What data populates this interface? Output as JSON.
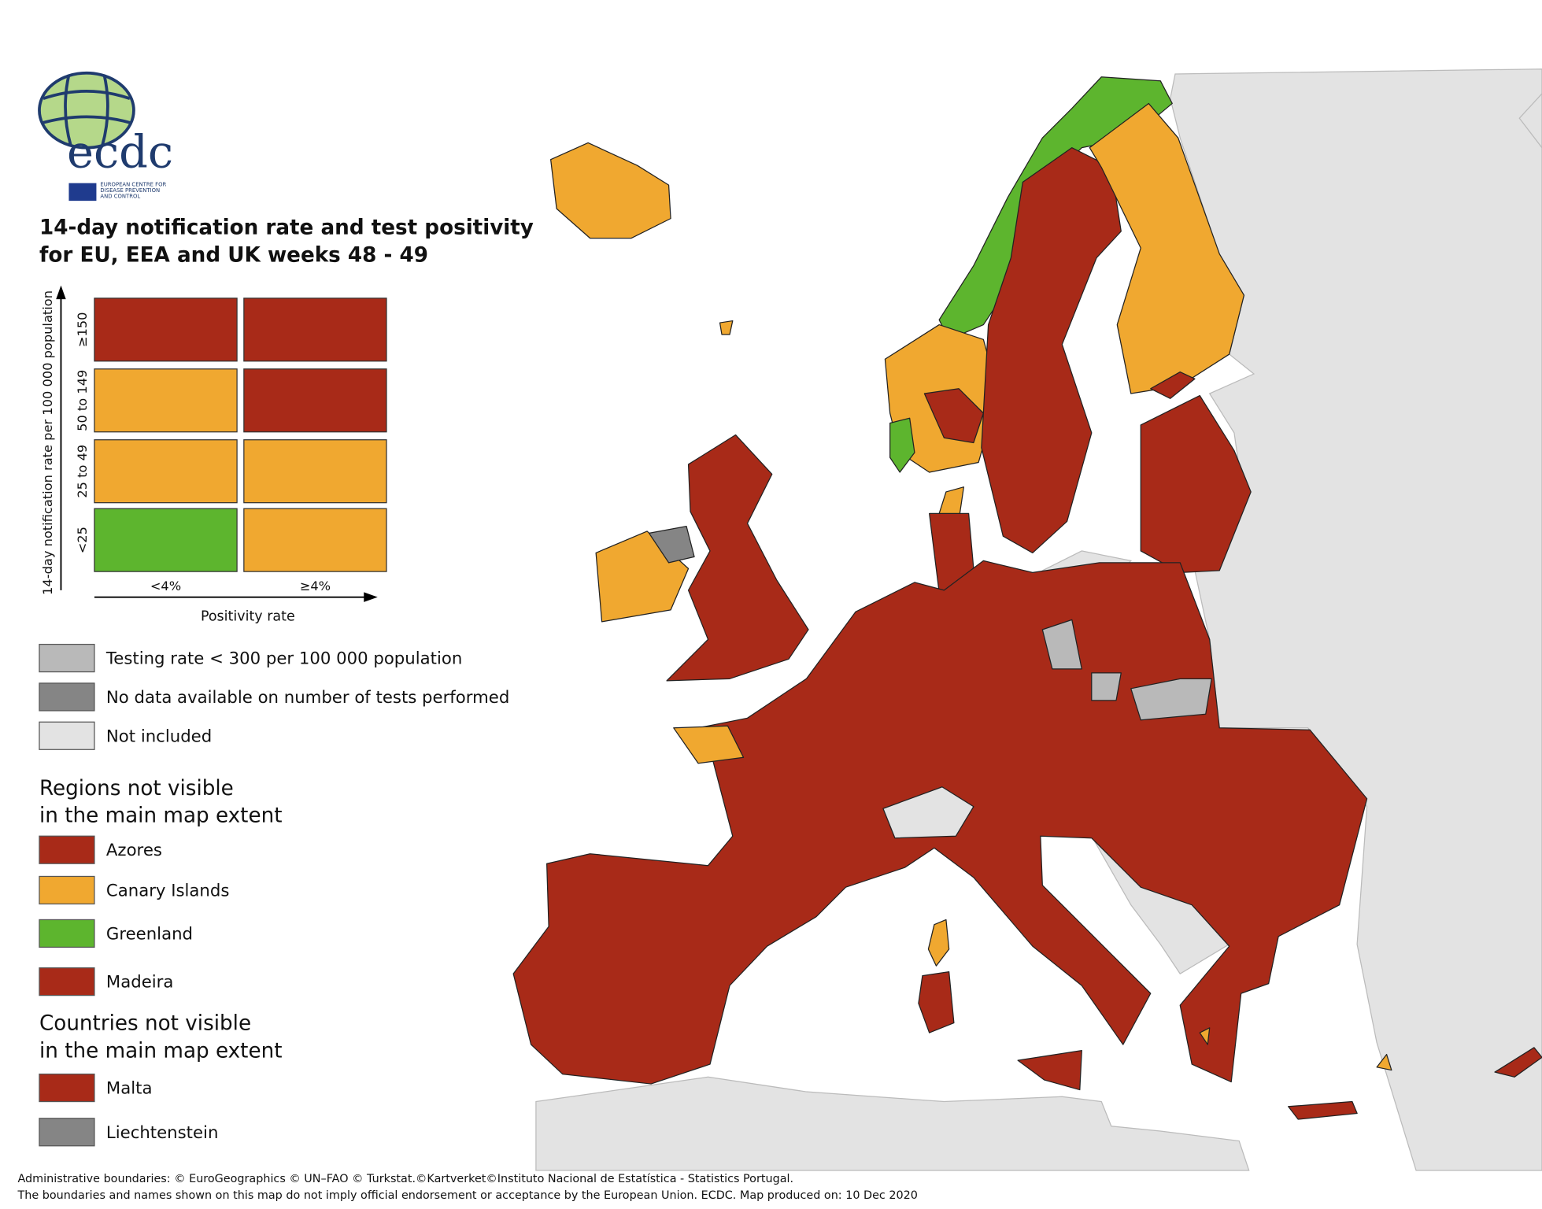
{
  "logo": {
    "name": "ecdc",
    "agency": [
      "EUROPEAN CENTRE FOR",
      "DISEASE PREVENTION",
      "AND CONTROL"
    ]
  },
  "title_lines": [
    "14-day notification rate and test positivity",
    "for EU, EEA and UK weeks 48 - 49"
  ],
  "matrix": {
    "y_axis_label": "14-day notification rate per 100 000 population",
    "x_axis_label": "Positivity rate",
    "rows": [
      "≥150",
      "50 to 149",
      "25 to 49",
      "<25"
    ],
    "columns": [
      "<4%",
      "≥4%"
    ],
    "cells": [
      [
        "#a82a18",
        "#a82a18"
      ],
      [
        "#f0a830",
        "#a82a18"
      ],
      [
        "#f0a830",
        "#f0a830"
      ],
      [
        "#5db52e",
        "#f0a830"
      ]
    ]
  },
  "legend": [
    {
      "label": "Testing rate < 300 per 100 000 population",
      "color": "#b9b9b9"
    },
    {
      "label": "No data available on number of tests performed",
      "color": "#858585"
    },
    {
      "label": "Not included",
      "color": "#e3e3e3"
    }
  ],
  "regions": {
    "title_lines": [
      "Regions not visible",
      "in the main map extent"
    ],
    "items": [
      {
        "label": "Azores",
        "color": "#a82a18"
      },
      {
        "label": "Canary Islands",
        "color": "#f0a830"
      },
      {
        "label": "Greenland",
        "color": "#5db52e"
      },
      {
        "label": "Madeira",
        "color": "#a82a18"
      }
    ]
  },
  "countries": {
    "title_lines": [
      "Countries not visible",
      "in the main map extent"
    ],
    "items": [
      {
        "label": "Malta",
        "color": "#a82a18"
      },
      {
        "label": "Liechtenstein",
        "color": "#858585"
      }
    ]
  },
  "footer": [
    "Administrative boundaries: © EuroGeographics © UN–FAO © Turkstat.©Kartverket©Instituto Nacional de Estatística - Statistics Portugal.",
    "The boundaries and names shown on this map do not imply official endorsement or acceptance by the European Union. ECDC. Map produced on: 10 Dec 2020"
  ]
}
